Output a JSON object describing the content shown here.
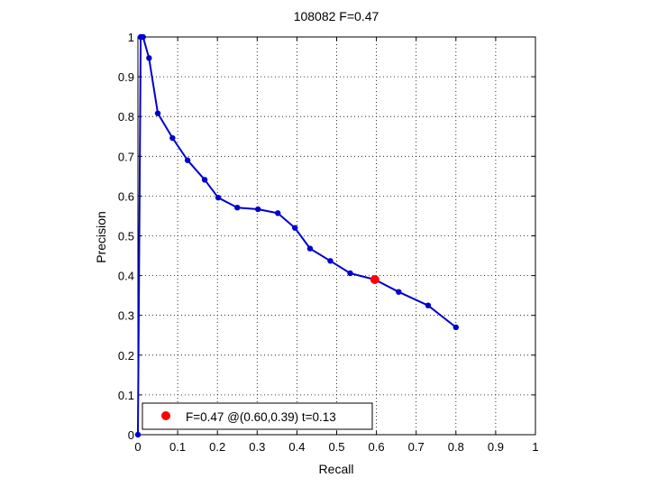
{
  "chart_data": {
    "type": "line",
    "title": "108082 F=0.47",
    "xlabel": "Recall",
    "ylabel": "Precision",
    "xlim": [
      0,
      1
    ],
    "ylim": [
      0,
      1
    ],
    "grid": true,
    "legend_position": "bottom-left",
    "x_ticks": [
      "0",
      "0.1",
      "0.2",
      "0.3",
      "0.4",
      "0.5",
      "0.6",
      "0.7",
      "0.8",
      "0.9",
      "1"
    ],
    "y_ticks": [
      "0",
      "0.1",
      "0.2",
      "0.3",
      "0.4",
      "0.5",
      "0.6",
      "0.7",
      "0.8",
      "0.9",
      "1"
    ],
    "series": [
      {
        "color": "#0000cc",
        "x": [
          0,
          0.007,
          0.013,
          0.028,
          0.05,
          0.087,
          0.125,
          0.168,
          0.202,
          0.25,
          0.302,
          0.352,
          0.395,
          0.433,
          0.484,
          0.534,
          0.596,
          0.656,
          0.73,
          0.8
        ],
        "y": [
          0,
          1.0,
          1.0,
          0.947,
          0.808,
          0.746,
          0.69,
          0.641,
          0.596,
          0.571,
          0.567,
          0.557,
          0.52,
          0.468,
          0.437,
          0.406,
          0.39,
          0.359,
          0.325,
          0.27
        ]
      }
    ],
    "best_point": {
      "x": 0.596,
      "y": 0.39,
      "color": "#ff0000"
    },
    "legend_label": "F=0.47 @(0.60,0.39) t=0.13"
  }
}
